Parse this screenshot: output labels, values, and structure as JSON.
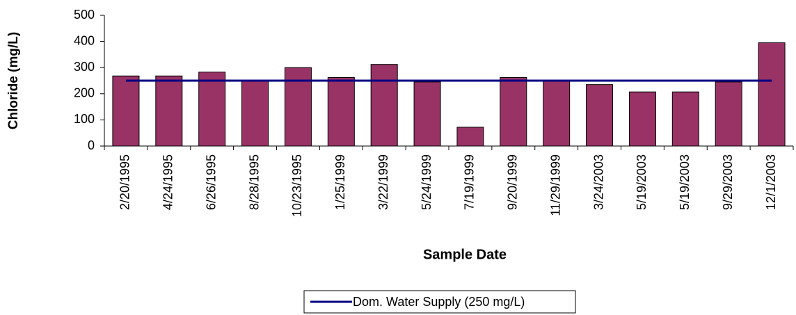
{
  "chart_data": {
    "type": "bar",
    "ylabel": "Chloride (mg/L)",
    "xlabel": "Sample Date",
    "categories": [
      "2/20/1995",
      "4/24/1995",
      "6/26/1995",
      "8/28/1995",
      "10/23/1995",
      "1/25/1999",
      "3/22/1999",
      "5/24/1999",
      "7/19/1999",
      "9/20/1999",
      "11/29/1999",
      "3/24/2003",
      "5/19/2003",
      "5/19/2003",
      "9/29/2003",
      "12/1/2003"
    ],
    "series": [
      {
        "color": "#993366",
        "kind": "bar",
        "values": [
          268,
          268,
          283,
          250,
          300,
          262,
          312,
          245,
          72,
          262,
          250,
          235,
          207,
          207,
          245,
          395
        ]
      },
      {
        "name": "Dom. Water Supply (250 mg/L)",
        "color": "#000080",
        "kind": "line",
        "values": [
          250,
          250,
          250,
          250,
          250,
          250,
          250,
          250,
          250,
          250,
          250,
          250,
          250,
          250,
          250,
          250
        ]
      }
    ],
    "ylim": [
      0,
      500
    ],
    "yticks": [
      0,
      100,
      200,
      300,
      400,
      500
    ],
    "grid": false,
    "legend": "bottom"
  }
}
